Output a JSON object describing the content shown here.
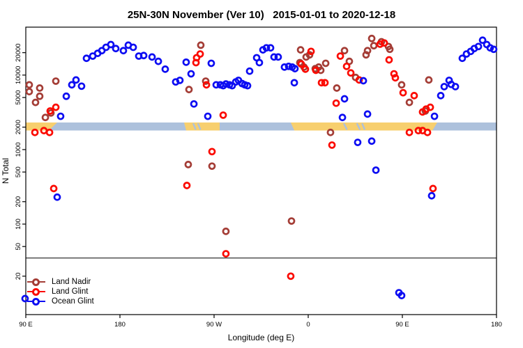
{
  "title": "25N-30N November (Ver 10)   2015-01-01 to 2020-12-18",
  "legend": {
    "items": [
      {
        "label": "Land Nadir",
        "color": "#a43d36"
      },
      {
        "label": "Land Glint",
        "color": "#fb0a00"
      },
      {
        "label": "Ocean Glint",
        "color": "#0d0df2"
      }
    ]
  },
  "chart_data": {
    "type": "scatter",
    "title": "25N-30N November (Ver 10)   2015-01-01 to 2020-12-18",
    "xlabel": "Longitude (deg E)",
    "ylabel": "N Total",
    "x_is_wrapped_longitude": "continuous deg E from 90 to 540 (90E..180..90W..0..90E..180)",
    "xlim": [
      90,
      540
    ],
    "ylim_log": [
      6.1,
      44000
    ],
    "grid": false,
    "legend_position": "bottom-left",
    "x_ticks": [
      {
        "lon": 90,
        "label": "90 E"
      },
      {
        "lon": 180,
        "label": "180"
      },
      {
        "lon": 270,
        "label": "90 W"
      },
      {
        "lon": 360,
        "label": "0"
      },
      {
        "lon": 450,
        "label": "90 E"
      },
      {
        "lon": 540,
        "label": "180"
      }
    ],
    "y_ticks": [
      20,
      50,
      100,
      200,
      500,
      1000,
      2000,
      5000,
      10000,
      20000
    ],
    "reference_line": {
      "n": 35,
      "color": "#000000"
    },
    "map_band": {
      "description": "land/ocean strip drawn across plot at N~2050",
      "n_center": 2050,
      "ocean_color": "#adc1dc",
      "land_color": "#f7cf6e",
      "ocean_extent": [
        90,
        540
      ],
      "land_segments": [
        {
          "name": "asia-east-left",
          "top": [
            90,
            120
          ],
          "bottom": [
            90,
            112
          ]
        },
        {
          "name": "north-america",
          "top": [
            241.3,
            275.3
          ],
          "bottom": [
            243.3,
            275.3
          ]
        },
        {
          "name": "africa-mideast-asia",
          "top": [
            343.3,
            483.3
          ],
          "bottom": [
            346.7,
            478.7
          ]
        }
      ],
      "water_details": [
        {
          "name": "gulf-of-california",
          "lon": [
            250.0,
            252.5
          ]
        },
        {
          "name": "gulf-of-california-2",
          "lon": [
            254.5,
            257.0
          ]
        },
        {
          "name": "red-sea",
          "lon": [
            394.0,
            397.0
          ]
        },
        {
          "name": "persian-gulf",
          "lon": [
            406.5,
            409.5
          ]
        },
        {
          "name": "persian-gulf-2",
          "lon": [
            411.5,
            414.0
          ]
        }
      ]
    },
    "series": [
      {
        "name": "Land Nadir",
        "color": "#a43d36",
        "marker": "open-circle",
        "points": [
          [
            93.3,
            7400
          ],
          [
            93.3,
            6000
          ],
          [
            103.3,
            6700
          ],
          [
            103.3,
            5200
          ],
          [
            99.3,
            4300
          ],
          [
            118.7,
            8300
          ],
          [
            108.7,
            2700
          ],
          [
            114,
            3100
          ],
          [
            246,
            6400
          ],
          [
            257.3,
            25200
          ],
          [
            262,
            8300
          ],
          [
            245.3,
            630
          ],
          [
            268,
            600
          ],
          [
            281.3,
            80
          ],
          [
            352.7,
            21800
          ],
          [
            358,
            17500
          ],
          [
            361.3,
            18700
          ],
          [
            352,
            14700
          ],
          [
            356,
            12800
          ],
          [
            366.7,
            12200
          ],
          [
            370,
            12800
          ],
          [
            372,
            11600
          ],
          [
            376.7,
            14400
          ],
          [
            387.3,
            6700
          ],
          [
            381.3,
            1700
          ],
          [
            344,
            110
          ],
          [
            394.7,
            21300
          ],
          [
            399.3,
            15300
          ],
          [
            405.3,
            9300
          ],
          [
            420.7,
            31000
          ],
          [
            422.7,
            24800
          ],
          [
            416.7,
            21300
          ],
          [
            415.3,
            18700
          ],
          [
            430,
            28000
          ],
          [
            436.7,
            24200
          ],
          [
            438,
            22200
          ],
          [
            449.3,
            7400
          ],
          [
            456.7,
            4300
          ],
          [
            475.3,
            8600
          ],
          [
            472,
            3300
          ]
        ]
      },
      {
        "name": "Land Glint",
        "color": "#fb0a00",
        "marker": "open-circle",
        "points": [
          [
            98.7,
            1700
          ],
          [
            107.3,
            1800
          ],
          [
            112.7,
            1700
          ],
          [
            118.7,
            3700
          ],
          [
            113.3,
            3300
          ],
          [
            116.7,
            300
          ],
          [
            256.7,
            19200
          ],
          [
            253.3,
            17100
          ],
          [
            252.7,
            14700
          ],
          [
            262.7,
            7400
          ],
          [
            268,
            940
          ],
          [
            244,
            330
          ],
          [
            278.7,
            2900
          ],
          [
            281.3,
            40
          ],
          [
            362.7,
            20800
          ],
          [
            353.3,
            14100
          ],
          [
            357.3,
            12000
          ],
          [
            367.3,
            11600
          ],
          [
            372.7,
            7900
          ],
          [
            376,
            7900
          ],
          [
            386.7,
            4200
          ],
          [
            382.7,
            1150
          ],
          [
            390.7,
            18000
          ],
          [
            396.7,
            13100
          ],
          [
            400.7,
            10700
          ],
          [
            408.7,
            8600
          ],
          [
            343.3,
            20
          ],
          [
            428.7,
            26000
          ],
          [
            432.7,
            27000
          ],
          [
            437.3,
            16000
          ],
          [
            442,
            10400
          ],
          [
            443.3,
            9200
          ],
          [
            450.7,
            5800
          ],
          [
            461.3,
            5300
          ],
          [
            469.3,
            3200
          ],
          [
            472.7,
            3500
          ],
          [
            476.7,
            3700
          ],
          [
            456.7,
            1700
          ],
          [
            465.3,
            1800
          ],
          [
            469.3,
            1800
          ],
          [
            474,
            1700
          ],
          [
            479.3,
            300
          ]
        ]
      },
      {
        "name": "Ocean Glint",
        "color": "#0d0df2",
        "marker": "open-circle",
        "points": [
          [
            89.3,
            10
          ],
          [
            120,
            230
          ],
          [
            123.3,
            2800
          ],
          [
            128.7,
            5200
          ],
          [
            134,
            7400
          ],
          [
            138,
            8600
          ],
          [
            143.3,
            7100
          ],
          [
            148,
            16800
          ],
          [
            154,
            18000
          ],
          [
            158.7,
            19600
          ],
          [
            162.7,
            21300
          ],
          [
            166.7,
            23600
          ],
          [
            171.3,
            25700
          ],
          [
            176,
            22700
          ],
          [
            183.3,
            21300
          ],
          [
            188,
            25200
          ],
          [
            192.7,
            23600
          ],
          [
            198,
            18000
          ],
          [
            202.7,
            18300
          ],
          [
            210.7,
            17500
          ],
          [
            216.7,
            15300
          ],
          [
            223.3,
            12000
          ],
          [
            233.3,
            8100
          ],
          [
            237.3,
            8500
          ],
          [
            243.3,
            14900
          ],
          [
            248,
            10400
          ],
          [
            250.7,
            4100
          ],
          [
            264,
            2800
          ],
          [
            267.3,
            14400
          ],
          [
            272,
            7400
          ],
          [
            276,
            7400
          ],
          [
            278.7,
            7200
          ],
          [
            281.3,
            7600
          ],
          [
            284.7,
            7400
          ],
          [
            287.3,
            7200
          ],
          [
            290.7,
            8100
          ],
          [
            293.3,
            8500
          ],
          [
            296.7,
            7700
          ],
          [
            299.3,
            7400
          ],
          [
            302,
            7200
          ],
          [
            304,
            11300
          ],
          [
            310.7,
            17100
          ],
          [
            313.3,
            14700
          ],
          [
            316.7,
            21800
          ],
          [
            320,
            23200
          ],
          [
            324,
            23200
          ],
          [
            327.3,
            17500
          ],
          [
            331.3,
            17500
          ],
          [
            337.3,
            12800
          ],
          [
            341.3,
            13100
          ],
          [
            344.7,
            12800
          ],
          [
            347.3,
            12200
          ],
          [
            346.7,
            7900
          ],
          [
            394.7,
            4800
          ],
          [
            392.7,
            2700
          ],
          [
            412.7,
            8400
          ],
          [
            416.7,
            3000
          ],
          [
            407.3,
            1250
          ],
          [
            420.7,
            1300
          ],
          [
            424.7,
            530
          ],
          [
            446.7,
            12
          ],
          [
            449.3,
            11
          ],
          [
            478,
            240
          ],
          [
            480.7,
            2800
          ],
          [
            486.7,
            5300
          ],
          [
            490,
            7000
          ],
          [
            494.7,
            8500
          ],
          [
            496.7,
            7500
          ],
          [
            500.7,
            7000
          ],
          [
            507.3,
            16800
          ],
          [
            511.3,
            19200
          ],
          [
            515.3,
            20800
          ],
          [
            518.7,
            22700
          ],
          [
            522.7,
            24200
          ],
          [
            526.7,
            29400
          ],
          [
            530.7,
            25700
          ],
          [
            534,
            23200
          ],
          [
            537.3,
            22200
          ]
        ]
      }
    ]
  }
}
